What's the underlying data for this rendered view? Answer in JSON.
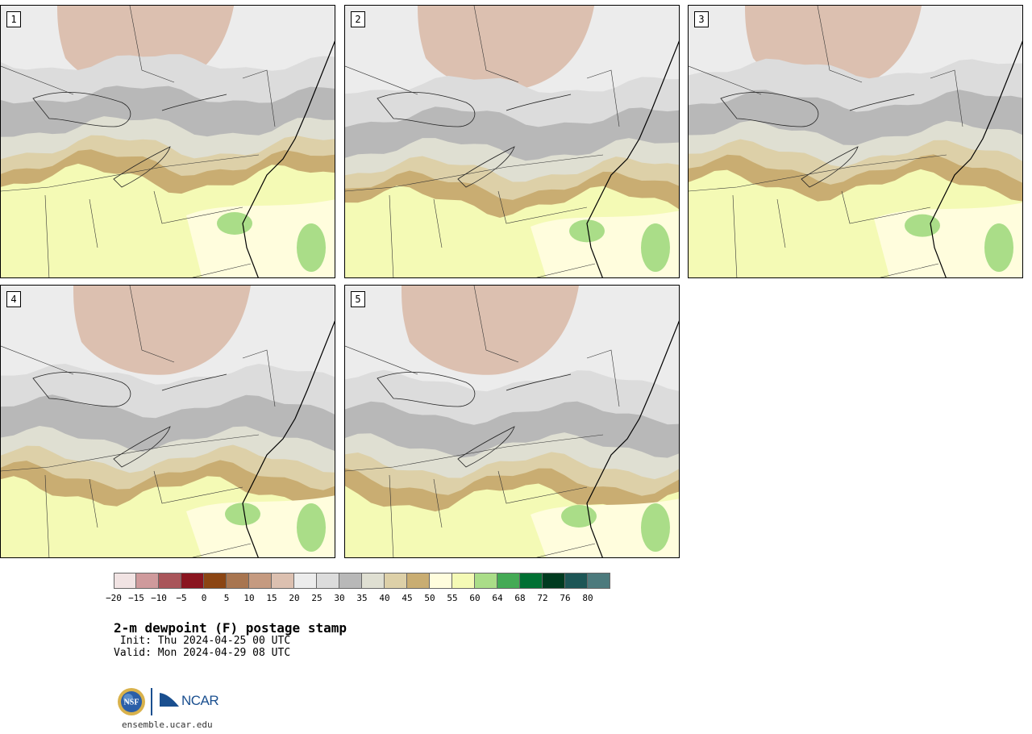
{
  "panels": [
    {
      "label": "1"
    },
    {
      "label": "2"
    },
    {
      "label": "3"
    },
    {
      "label": "4"
    },
    {
      "label": "5"
    }
  ],
  "colorbar": {
    "colors": [
      "#f1e3e3",
      "#cf9a9c",
      "#a9555a",
      "#8a1520",
      "#8b4513",
      "#a87550",
      "#c59a80",
      "#dcc0b0",
      "#ececec",
      "#dcdcdc",
      "#b8b8b8",
      "#dfdfd2",
      "#ddd0a8",
      "#c9ad72",
      "#fffddd",
      "#f4fab5",
      "#aadd88",
      "#44aa55",
      "#007033",
      "#003b20",
      "#1d5656",
      "#4c7a7d"
    ],
    "ticks": [
      "−20",
      "−15",
      "−10",
      "−5",
      "0",
      "5",
      "10",
      "15",
      "20",
      "25",
      "30",
      "35",
      "40",
      "45",
      "50",
      "55",
      "60",
      "64",
      "68",
      "72",
      "76",
      "80"
    ]
  },
  "title": "2-m dewpoint (F) postage stamp",
  "init": " Init: Thu 2024-04-25 00 UTC",
  "valid": "Valid: Mon 2024-04-29 08 UTC",
  "logos": {
    "nsf": "NSF",
    "ncar": "NCAR"
  },
  "url": "ensemble.ucar.edu"
}
